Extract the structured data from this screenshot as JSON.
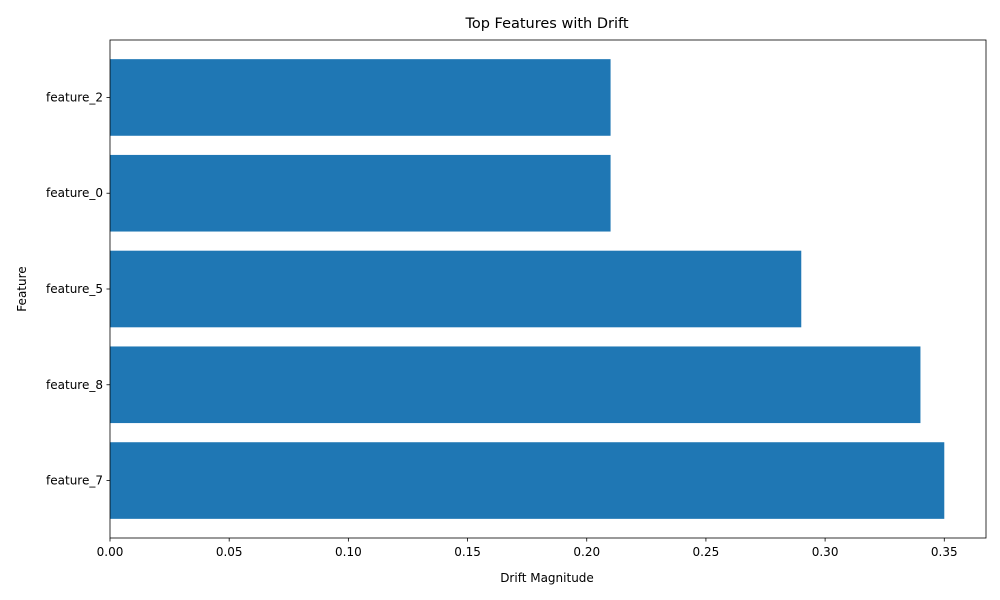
{
  "chart_data": {
    "type": "bar",
    "orientation": "horizontal",
    "title": "Top Features with Drift",
    "xlabel": "Drift Magnitude",
    "ylabel": "Feature",
    "categories": [
      "feature_7",
      "feature_8",
      "feature_5",
      "feature_0",
      "feature_2"
    ],
    "values": [
      0.35,
      0.34,
      0.29,
      0.21,
      0.21
    ],
    "xlim": [
      0,
      0.3675
    ],
    "x_ticks": [
      "0.00",
      "0.05",
      "0.10",
      "0.15",
      "0.20",
      "0.25",
      "0.30",
      "0.35"
    ],
    "grid": false,
    "legend": "none",
    "bar_color": "#1f77b4"
  }
}
